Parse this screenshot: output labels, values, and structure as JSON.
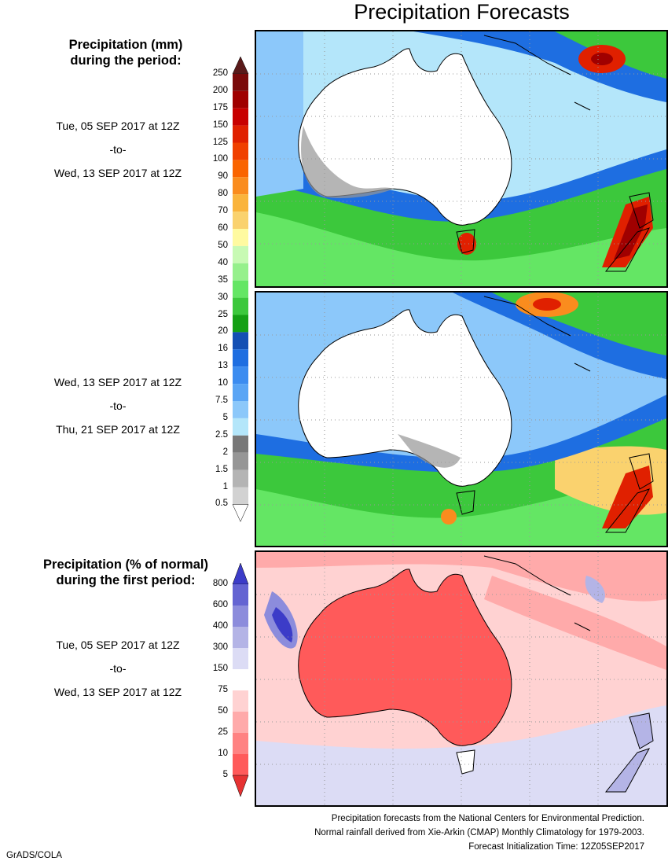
{
  "title": "Precipitation Forecasts",
  "section1": {
    "heading": [
      "Precipitation (mm)",
      "during the period:"
    ],
    "period1": {
      "from": "Tue, 05 SEP 2017 at 12Z",
      "sep": "-to-",
      "to": "Wed, 13 SEP 2017 at 12Z"
    },
    "period2": {
      "from": "Wed, 13 SEP 2017 at 12Z",
      "sep": "-to-",
      "to": "Thu, 21 SEP 2017 at 12Z"
    }
  },
  "section2": {
    "heading": [
      "Precipitation (% of normal)",
      "during the first period:"
    ],
    "period": {
      "from": "Tue, 05 SEP 2017 at 12Z",
      "sep": "-to-",
      "to": "Wed, 13 SEP 2017 at 12Z"
    }
  },
  "colorbar_mm": {
    "labels": [
      "250",
      "200",
      "175",
      "150",
      "125",
      "100",
      "90",
      "80",
      "70",
      "60",
      "50",
      "40",
      "35",
      "30",
      "25",
      "20",
      "16",
      "13",
      "10",
      "7.5",
      "5",
      "2.5",
      "2",
      "1.5",
      "1",
      "0.5"
    ],
    "colors": [
      "#5a1a1a",
      "#7a0a0a",
      "#a00000",
      "#c80000",
      "#e02000",
      "#f04000",
      "#fa6400",
      "#fa8c1e",
      "#fab43c",
      "#fad26e",
      "#fffaa0",
      "#c8fab4",
      "#96f08c",
      "#64e664",
      "#3cc83c",
      "#14a014",
      "#1450b4",
      "#1e6ee1",
      "#3c8cf0",
      "#5aa5f5",
      "#8cc8fa",
      "#b4e6fa",
      "#787878",
      "#969696",
      "#b4b4b4",
      "#d2d2d2",
      "#ffffff"
    ]
  },
  "colorbar_pct": {
    "labels": [
      "800",
      "600",
      "400",
      "300",
      "150",
      "75",
      "50",
      "25",
      "10",
      "5"
    ],
    "colors": [
      "#3c3cc8",
      "#6464d2",
      "#8c8cdc",
      "#b4b4e6",
      "#dcdcf5",
      "#ffffff",
      "#ffd2d2",
      "#ffaaaa",
      "#ff8282",
      "#ff5a5a",
      "#e63232"
    ]
  },
  "footer": [
    "Precipitation forecasts from the National Centers for Environmental Prediction.",
    "Normal rainfall derived from Xie-Arkin (CMAP) Monthly Climatology for 1979-2003.",
    "Forecast Initialization Time: 12Z05SEP2017"
  ],
  "credit": "GrADS/COLA"
}
